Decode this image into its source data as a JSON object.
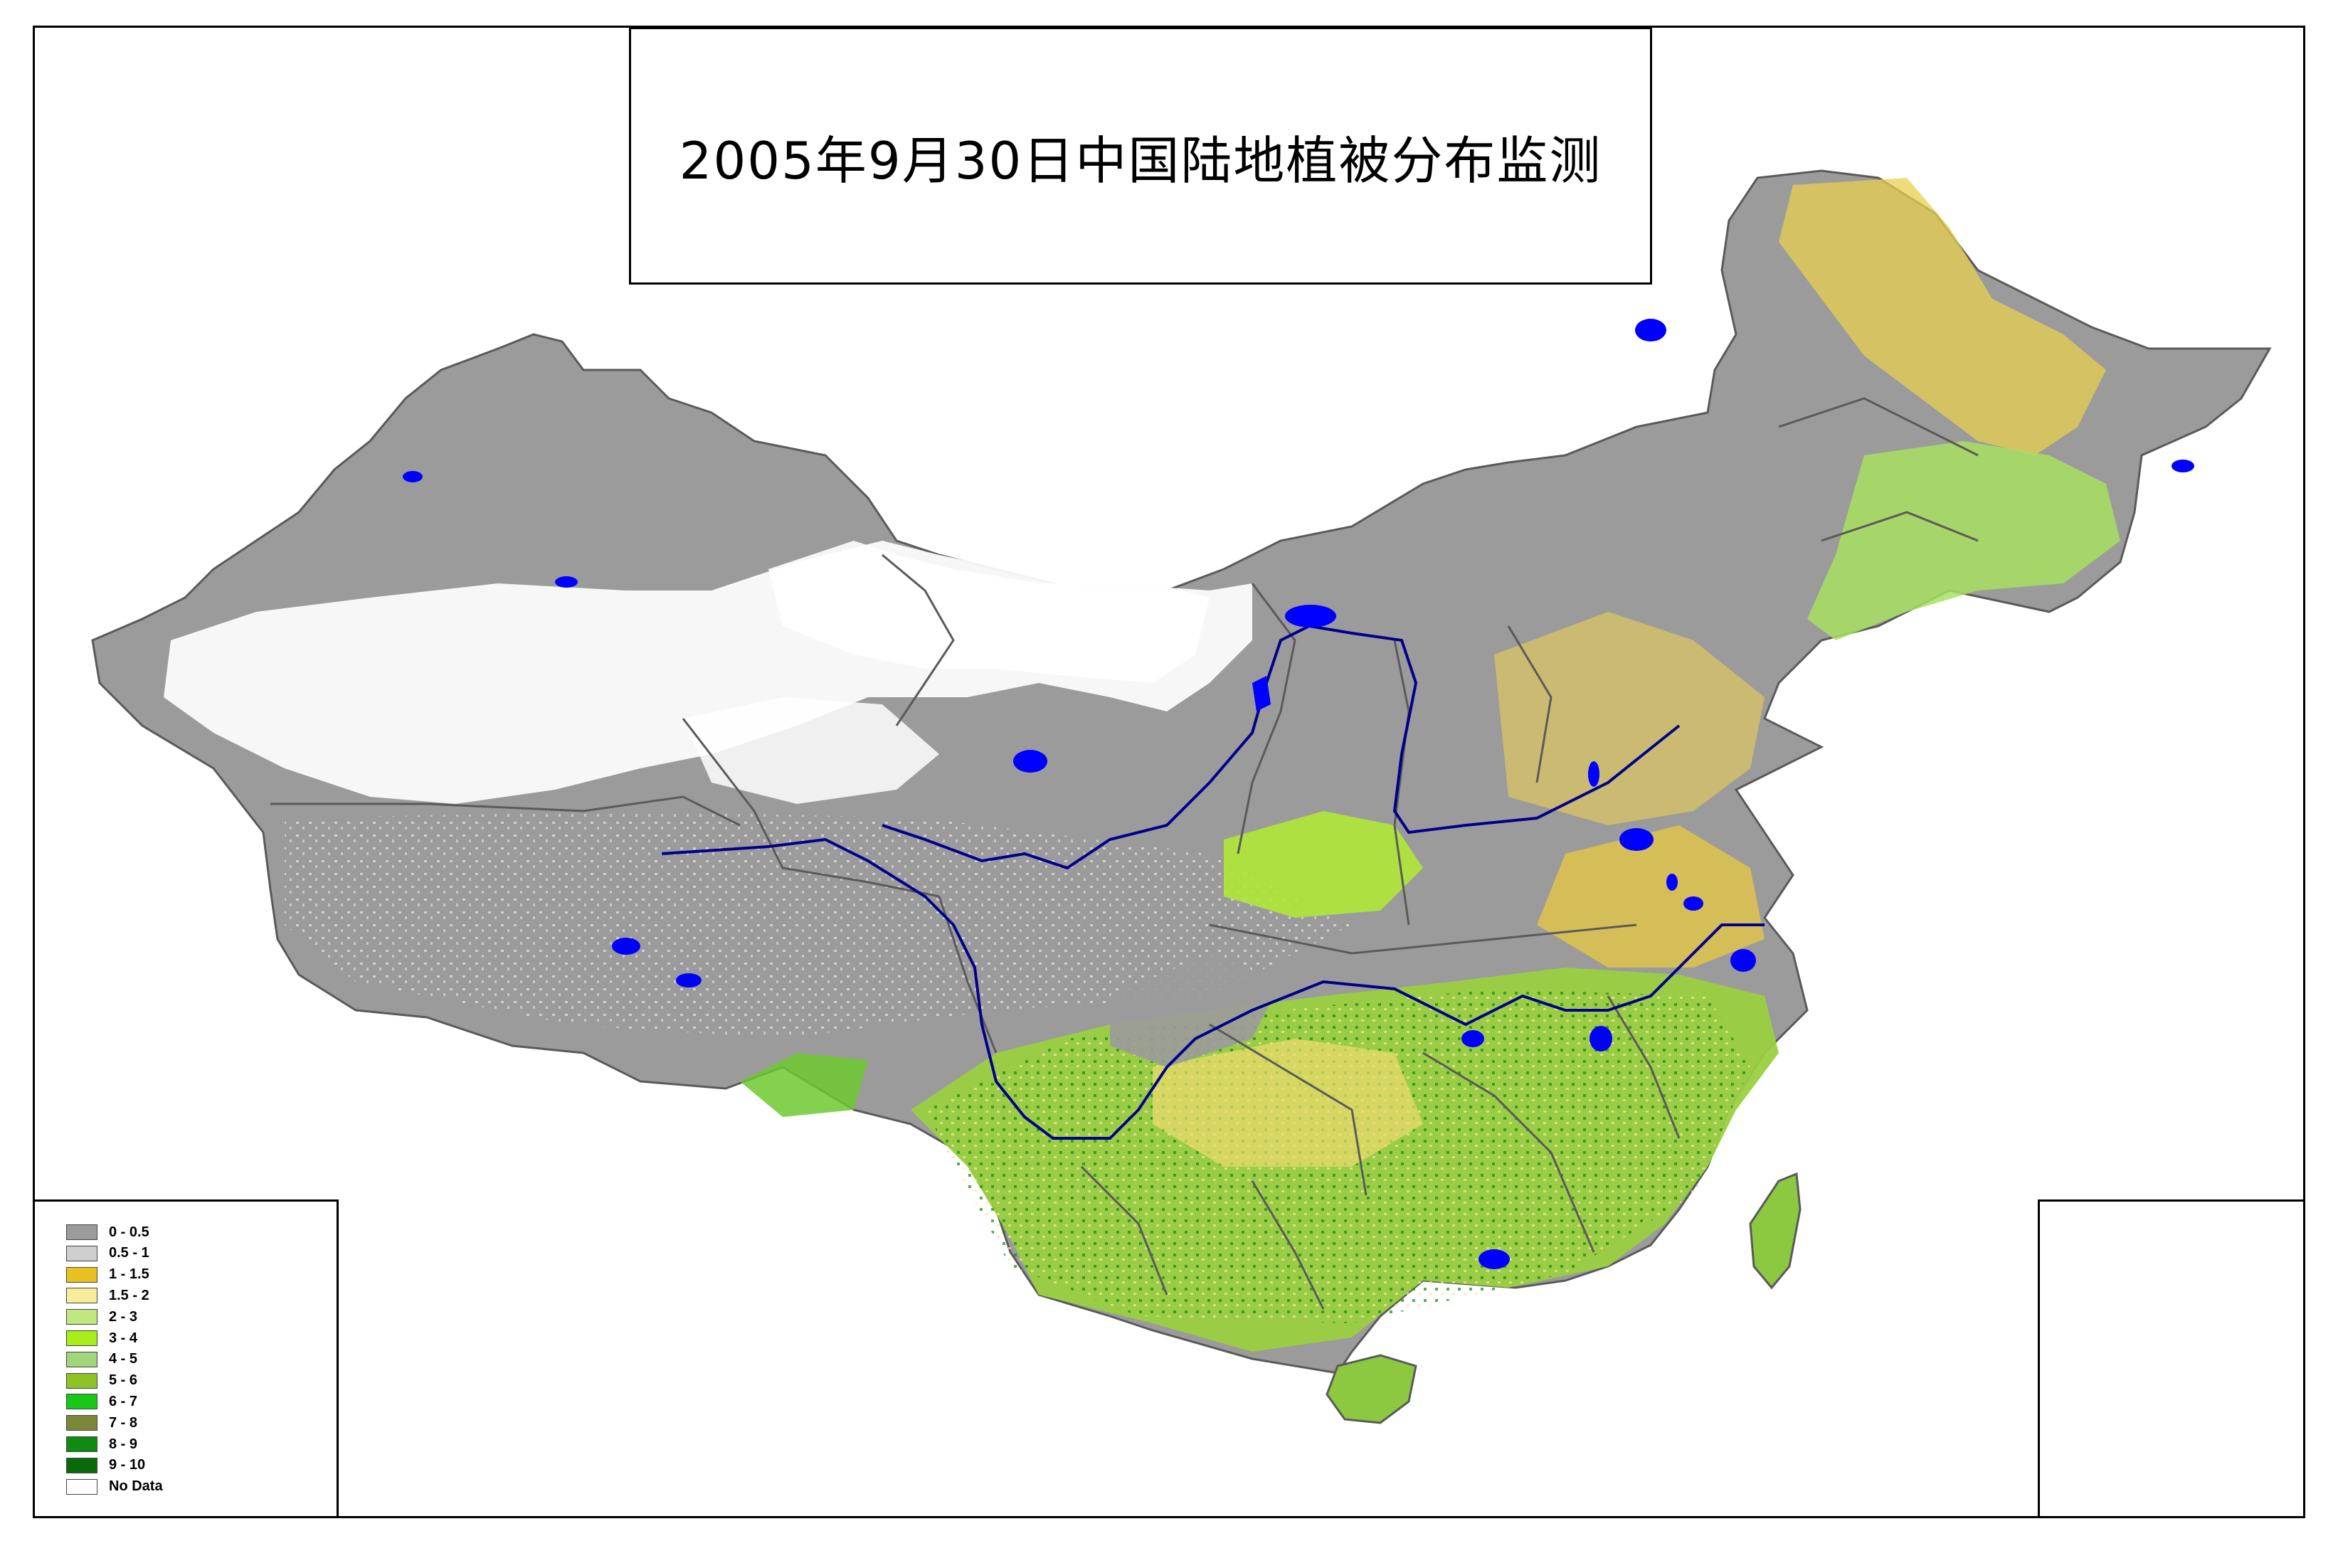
{
  "title": "2005年9月30日中国陆地植被分布监测",
  "legend": {
    "items": [
      {
        "label": "0 - 0.5",
        "color": "#9b9b9b"
      },
      {
        "label": "0.5 - 1",
        "color": "#cfcfcf"
      },
      {
        "label": "1 - 1.5",
        "color": "#e8c020"
      },
      {
        "label": "1.5 - 2",
        "color": "#f6ec9a"
      },
      {
        "label": "2 - 3",
        "color": "#bfe880"
      },
      {
        "label": "3 - 4",
        "color": "#a8ee1a"
      },
      {
        "label": "4 - 5",
        "color": "#a2d67a"
      },
      {
        "label": "5 - 6",
        "color": "#8cc428"
      },
      {
        "label": "6 - 7",
        "color": "#18c818"
      },
      {
        "label": "7 - 8",
        "color": "#7a8838"
      },
      {
        "label": "8 - 9",
        "color": "#108a10"
      },
      {
        "label": "9 - 10",
        "color": "#0a6a0a"
      },
      {
        "label": "No Data",
        "color": "#ffffff"
      }
    ]
  },
  "colors": {
    "water": "#0000ff",
    "river": "#00008b",
    "boundary": "#5a5a5a",
    "frame": "#000000"
  }
}
